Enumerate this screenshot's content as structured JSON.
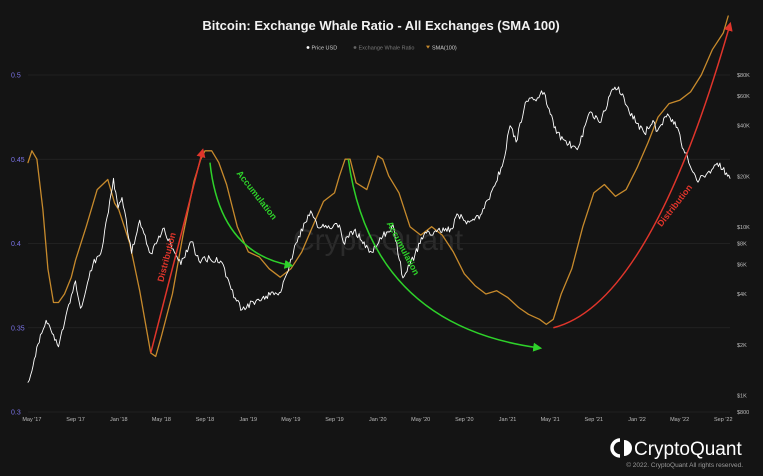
{
  "chart_data": {
    "type": "line",
    "title": "Bitcoin: Exchange Whale Ratio - All Exchanges (SMA 100)",
    "legend_placement": "top-center",
    "grid": true,
    "legend": [
      {
        "name": "Price USD",
        "color": "#ffffff"
      },
      {
        "name": "Exchange Whale Ratio",
        "color": "#666666"
      },
      {
        "name": "SMA(100)",
        "color": "#c78a2c"
      }
    ],
    "x_axis": {
      "range": [
        "2017-04-20",
        "2022-09-20"
      ],
      "ticks": [
        {
          "date": "2017-05-01",
          "label": "May '17"
        },
        {
          "date": "2017-09-01",
          "label": "Sep '17"
        },
        {
          "date": "2018-01-01",
          "label": "Jan '18"
        },
        {
          "date": "2018-05-01",
          "label": "May '18"
        },
        {
          "date": "2018-09-01",
          "label": "Sep '18"
        },
        {
          "date": "2019-01-01",
          "label": "Jan '19"
        },
        {
          "date": "2019-05-01",
          "label": "May '19"
        },
        {
          "date": "2019-09-01",
          "label": "Sep '19"
        },
        {
          "date": "2020-01-01",
          "label": "Jan '20"
        },
        {
          "date": "2020-05-01",
          "label": "May '20"
        },
        {
          "date": "2020-09-01",
          "label": "Sep '20"
        },
        {
          "date": "2021-01-01",
          "label": "Jan '21"
        },
        {
          "date": "2021-05-01",
          "label": "May '21"
        },
        {
          "date": "2021-09-01",
          "label": "Sep '21"
        },
        {
          "date": "2022-01-01",
          "label": "Jan '22"
        },
        {
          "date": "2022-05-01",
          "label": "May '22"
        },
        {
          "date": "2022-09-01",
          "label": "Sep '22"
        }
      ]
    },
    "y_left": {
      "range": [
        0.3,
        0.5
      ],
      "ticks": [
        {
          "value": 0.3,
          "label": "0.3"
        },
        {
          "value": 0.35,
          "label": "0.35"
        },
        {
          "value": 0.4,
          "label": "0.4"
        },
        {
          "value": 0.45,
          "label": "0.45"
        },
        {
          "value": 0.5,
          "label": "0.5"
        }
      ]
    },
    "y_right": {
      "scale": "log",
      "range": [
        800,
        80000
      ],
      "ticks": [
        {
          "value": 800,
          "label": "$800"
        },
        {
          "value": 1000,
          "label": "$1K"
        },
        {
          "value": 2000,
          "label": "$2K"
        },
        {
          "value": 4000,
          "label": "$4K"
        },
        {
          "value": 6000,
          "label": "$6K"
        },
        {
          "value": 8000,
          "label": "$8K"
        },
        {
          "value": 10000,
          "label": "$10K"
        },
        {
          "value": 20000,
          "label": "$20K"
        },
        {
          "value": 40000,
          "label": "$40K"
        },
        {
          "value": 60000,
          "label": "$60K"
        },
        {
          "value": 80000,
          "label": "$80K"
        }
      ]
    },
    "series": [
      {
        "name": "SMA(100)",
        "axis": "left",
        "color": "#c78a2c",
        "points": [
          [
            "2017-04-20",
            0.448
          ],
          [
            "2017-05-01",
            0.455
          ],
          [
            "2017-05-15",
            0.45
          ],
          [
            "2017-06-01",
            0.42
          ],
          [
            "2017-06-15",
            0.385
          ],
          [
            "2017-07-01",
            0.365
          ],
          [
            "2017-07-15",
            0.365
          ],
          [
            "2017-08-01",
            0.37
          ],
          [
            "2017-08-20",
            0.38
          ],
          [
            "2017-09-01",
            0.39
          ],
          [
            "2017-10-01",
            0.41
          ],
          [
            "2017-11-01",
            0.432
          ],
          [
            "2017-12-01",
            0.438
          ],
          [
            "2017-12-20",
            0.424
          ],
          [
            "2018-01-01",
            0.42
          ],
          [
            "2018-02-01",
            0.4
          ],
          [
            "2018-03-01",
            0.372
          ],
          [
            "2018-04-01",
            0.335
          ],
          [
            "2018-04-15",
            0.333
          ],
          [
            "2018-05-01",
            0.345
          ],
          [
            "2018-06-01",
            0.37
          ],
          [
            "2018-07-01",
            0.405
          ],
          [
            "2018-08-01",
            0.437
          ],
          [
            "2018-08-20",
            0.45
          ],
          [
            "2018-09-01",
            0.455
          ],
          [
            "2018-09-20",
            0.455
          ],
          [
            "2018-10-10",
            0.448
          ],
          [
            "2018-11-01",
            0.435
          ],
          [
            "2018-12-01",
            0.41
          ],
          [
            "2019-01-01",
            0.395
          ],
          [
            "2019-02-01",
            0.392
          ],
          [
            "2019-03-01",
            0.385
          ],
          [
            "2019-04-01",
            0.38
          ],
          [
            "2019-05-01",
            0.385
          ],
          [
            "2019-06-01",
            0.395
          ],
          [
            "2019-07-01",
            0.41
          ],
          [
            "2019-08-01",
            0.425
          ],
          [
            "2019-09-01",
            0.43
          ],
          [
            "2019-09-15",
            0.44
          ],
          [
            "2019-10-01",
            0.45
          ],
          [
            "2019-10-15",
            0.45
          ],
          [
            "2019-11-01",
            0.436
          ],
          [
            "2019-12-01",
            0.432
          ],
          [
            "2020-01-01",
            0.452
          ],
          [
            "2020-01-15",
            0.45
          ],
          [
            "2020-02-01",
            0.44
          ],
          [
            "2020-03-01",
            0.43
          ],
          [
            "2020-04-01",
            0.41
          ],
          [
            "2020-05-01",
            0.405
          ],
          [
            "2020-06-01",
            0.41
          ],
          [
            "2020-07-01",
            0.405
          ],
          [
            "2020-08-01",
            0.395
          ],
          [
            "2020-09-01",
            0.382
          ],
          [
            "2020-10-01",
            0.375
          ],
          [
            "2020-11-01",
            0.37
          ],
          [
            "2020-12-01",
            0.372
          ],
          [
            "2021-01-01",
            0.368
          ],
          [
            "2021-02-01",
            0.362
          ],
          [
            "2021-03-01",
            0.358
          ],
          [
            "2021-04-01",
            0.355
          ],
          [
            "2021-04-20",
            0.352
          ],
          [
            "2021-05-10",
            0.355
          ],
          [
            "2021-06-01",
            0.37
          ],
          [
            "2021-07-01",
            0.385
          ],
          [
            "2021-08-01",
            0.41
          ],
          [
            "2021-09-01",
            0.43
          ],
          [
            "2021-10-01",
            0.435
          ],
          [
            "2021-11-01",
            0.428
          ],
          [
            "2021-12-01",
            0.432
          ],
          [
            "2022-01-01",
            0.445
          ],
          [
            "2022-02-01",
            0.46
          ],
          [
            "2022-03-01",
            0.475
          ],
          [
            "2022-04-01",
            0.483
          ],
          [
            "2022-05-01",
            0.485
          ],
          [
            "2022-06-01",
            0.49
          ],
          [
            "2022-07-01",
            0.5
          ],
          [
            "2022-08-01",
            0.515
          ],
          [
            "2022-09-01",
            0.525
          ],
          [
            "2022-09-15",
            0.535
          ]
        ]
      },
      {
        "name": "Price USD",
        "axis": "right",
        "color": "#ffffff",
        "points": [
          [
            "2017-04-20",
            1200
          ],
          [
            "2017-05-01",
            1400
          ],
          [
            "2017-05-25",
            2300
          ],
          [
            "2017-06-10",
            2800
          ],
          [
            "2017-07-15",
            1950
          ],
          [
            "2017-08-01",
            2700
          ],
          [
            "2017-09-01",
            4800
          ],
          [
            "2017-09-15",
            3300
          ],
          [
            "2017-10-01",
            4300
          ],
          [
            "2017-10-20",
            6000
          ],
          [
            "2017-11-15",
            7500
          ],
          [
            "2017-12-17",
            19500
          ],
          [
            "2017-12-30",
            13000
          ],
          [
            "2018-01-10",
            15000
          ],
          [
            "2018-02-06",
            7000
          ],
          [
            "2018-03-01",
            11000
          ],
          [
            "2018-04-01",
            7000
          ],
          [
            "2018-05-05",
            9800
          ],
          [
            "2018-06-25",
            6000
          ],
          [
            "2018-07-25",
            8200
          ],
          [
            "2018-08-15",
            6300
          ],
          [
            "2018-09-15",
            6500
          ],
          [
            "2018-10-15",
            6300
          ],
          [
            "2018-11-25",
            3800
          ],
          [
            "2018-12-15",
            3250
          ],
          [
            "2019-01-15",
            3600
          ],
          [
            "2019-02-20",
            3900
          ],
          [
            "2019-03-30",
            4100
          ],
          [
            "2019-04-20",
            5300
          ],
          [
            "2019-05-15",
            8000
          ],
          [
            "2019-06-26",
            12500
          ],
          [
            "2019-07-15",
            10000
          ],
          [
            "2019-08-15",
            10200
          ],
          [
            "2019-09-15",
            10300
          ],
          [
            "2019-09-26",
            8100
          ],
          [
            "2019-10-26",
            9500
          ],
          [
            "2019-12-15",
            7100
          ],
          [
            "2020-01-15",
            8800
          ],
          [
            "2020-02-13",
            10300
          ],
          [
            "2020-03-12",
            5000
          ],
          [
            "2020-04-15",
            6900
          ],
          [
            "2020-05-10",
            9000
          ],
          [
            "2020-06-15",
            9400
          ],
          [
            "2020-07-25",
            9800
          ],
          [
            "2020-08-15",
            11800
          ],
          [
            "2020-09-15",
            10700
          ],
          [
            "2020-10-20",
            12000
          ],
          [
            "2020-11-15",
            16000
          ],
          [
            "2020-12-17",
            23000
          ],
          [
            "2021-01-08",
            40000
          ],
          [
            "2021-01-25",
            32000
          ],
          [
            "2021-02-20",
            55000
          ],
          [
            "2021-03-15",
            57000
          ],
          [
            "2021-04-14",
            63000
          ],
          [
            "2021-05-19",
            36000
          ],
          [
            "2021-06-22",
            31000
          ],
          [
            "2021-07-20",
            30000
          ],
          [
            "2021-08-20",
            48000
          ],
          [
            "2021-09-21",
            42000
          ],
          [
            "2021-10-20",
            64000
          ],
          [
            "2021-11-10",
            68000
          ],
          [
            "2021-12-10",
            48000
          ],
          [
            "2022-01-22",
            36000
          ],
          [
            "2022-02-15",
            43000
          ],
          [
            "2022-02-24",
            37000
          ],
          [
            "2022-03-28",
            47000
          ],
          [
            "2022-04-25",
            39000
          ],
          [
            "2022-05-12",
            29000
          ],
          [
            "2022-06-18",
            19000
          ],
          [
            "2022-07-15",
            20500
          ],
          [
            "2022-08-15",
            24000
          ],
          [
            "2022-09-10",
            21000
          ],
          [
            "2022-09-20",
            19500
          ]
        ]
      }
    ],
    "annotations": [
      {
        "text": "Distribution",
        "color": "#e0352b",
        "from": [
          "2018-04-01",
          0.335
        ],
        "to": [
          "2018-08-25",
          0.455
        ]
      },
      {
        "text": "Accumulation",
        "color": "#2ed12a",
        "from": [
          "2018-09-15",
          0.448
        ],
        "to": [
          "2019-05-01",
          0.387
        ]
      },
      {
        "text": "Accumulation",
        "color": "#2ed12a",
        "from": [
          "2019-10-10",
          0.45
        ],
        "to": [
          "2021-04-01",
          0.338
        ]
      },
      {
        "text": "Distribution",
        "color": "#e0352b",
        "from": [
          "2021-05-10",
          0.35
        ],
        "to": [
          "2022-09-20",
          0.53
        ]
      }
    ]
  },
  "watermark": "CryptoQuant",
  "brand": {
    "name": "CryptoQuant",
    "copyright": "© 2022. CryptoQuant All rights reserved."
  }
}
